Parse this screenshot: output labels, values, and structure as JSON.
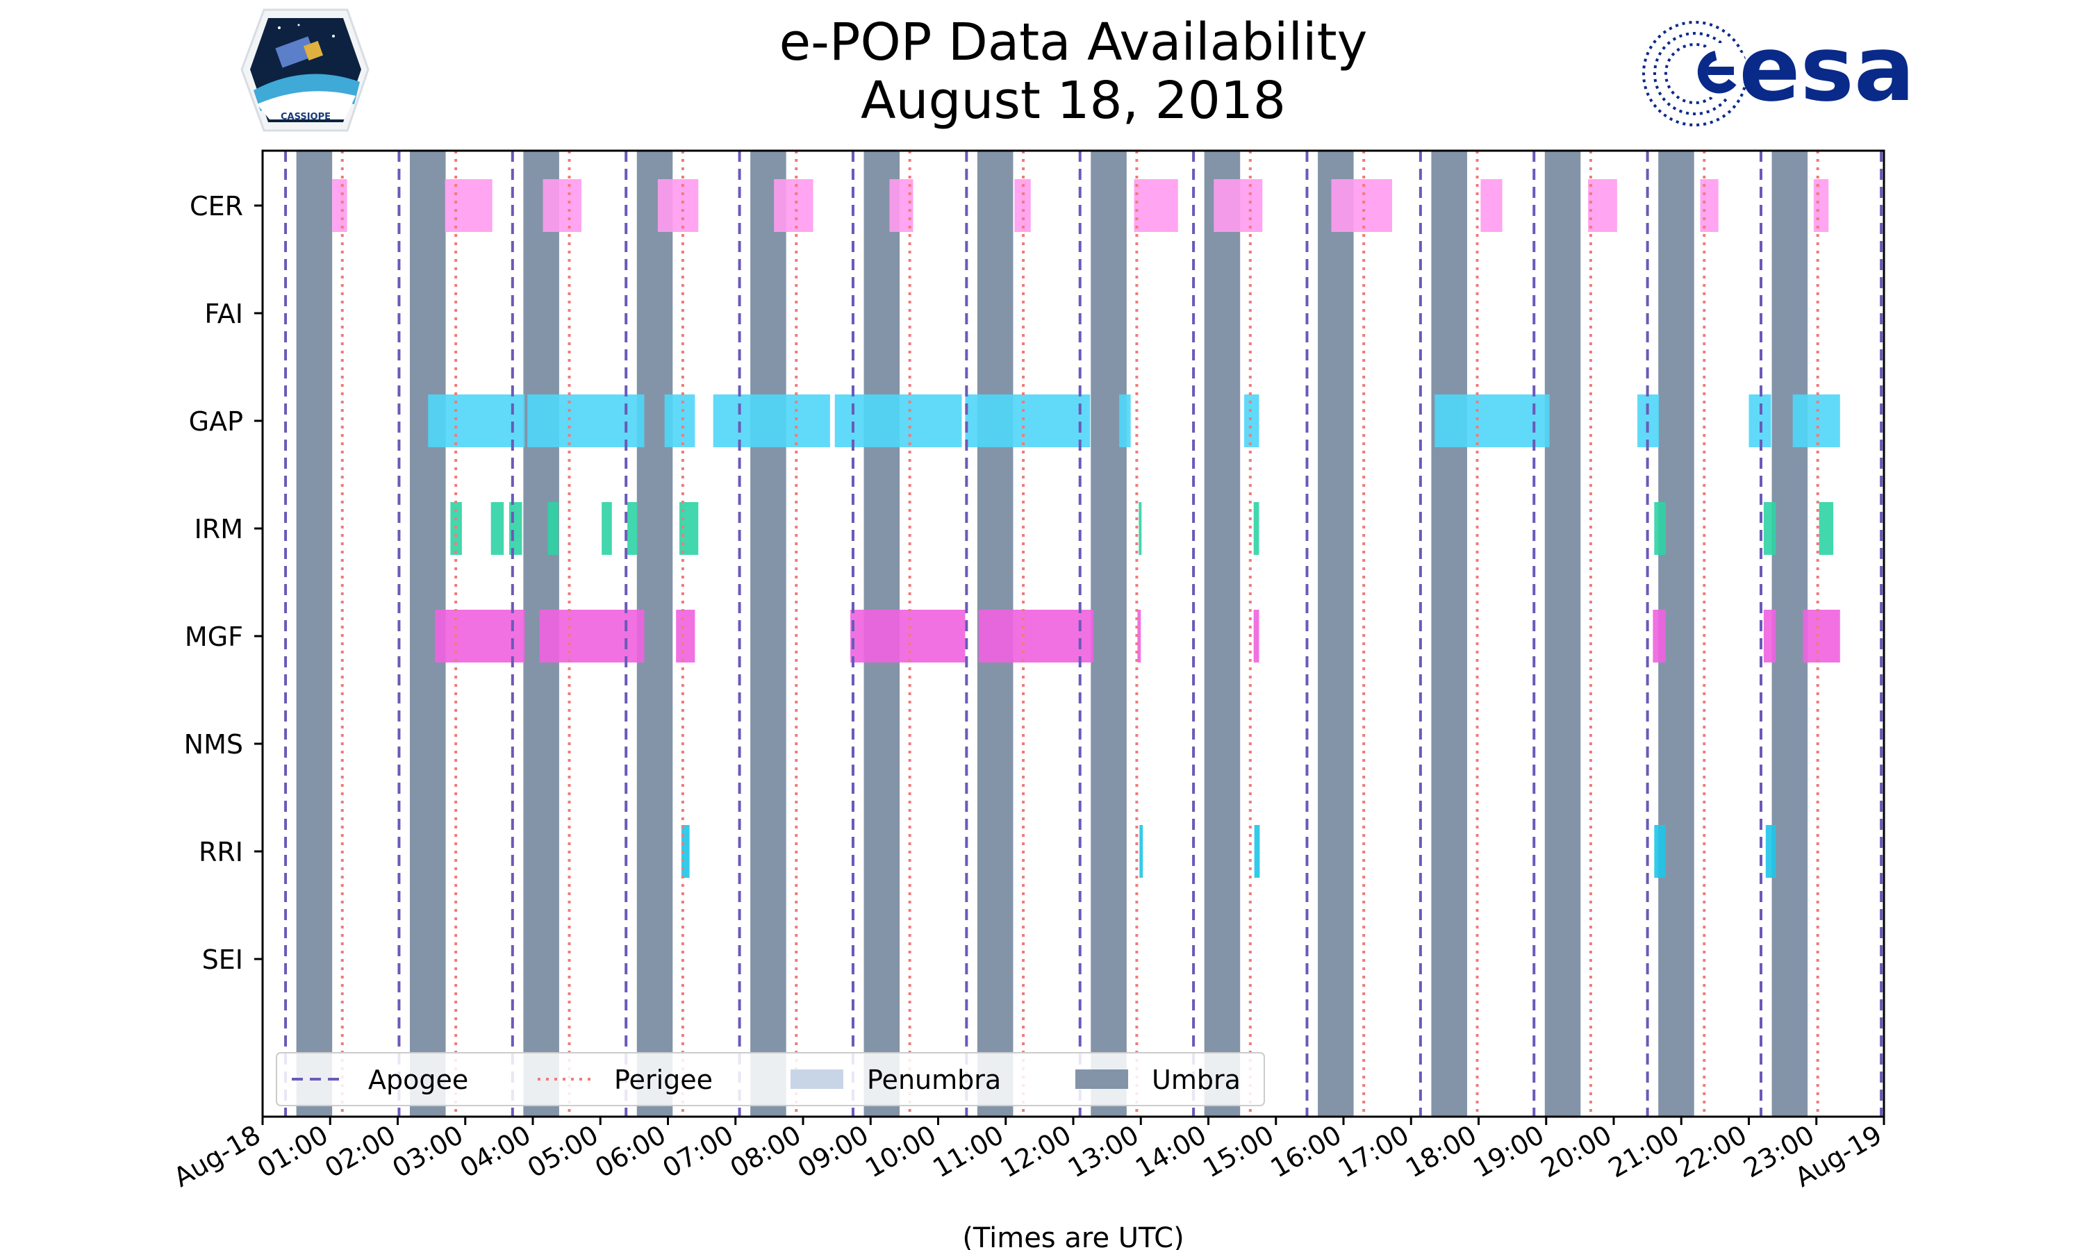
{
  "logos": {
    "left": {
      "name": "CASSIOPE mission badge",
      "text": "CASSIOPE"
    },
    "right": {
      "name": "ESA logo",
      "text": "esa",
      "color": "#0a2a8a"
    }
  },
  "chart_data": {
    "type": "timeline",
    "title": "e-POP Data Availability",
    "subtitle": "August 18, 2018",
    "xlabel": "(Times are UTC)",
    "ylabel": "",
    "x_range_hours": [
      0,
      24
    ],
    "x_tick_labels": [
      "Aug-18",
      "01:00",
      "02:00",
      "03:00",
      "04:00",
      "05:00",
      "06:00",
      "07:00",
      "08:00",
      "09:00",
      "10:00",
      "11:00",
      "12:00",
      "13:00",
      "14:00",
      "15:00",
      "16:00",
      "17:00",
      "18:00",
      "19:00",
      "20:00",
      "21:00",
      "22:00",
      "23:00",
      "Aug-19"
    ],
    "instruments": [
      "CER",
      "FAI",
      "GAP",
      "IRM",
      "MGF",
      "NMS",
      "RRI",
      "SEI"
    ],
    "colors": {
      "CER": "#ff9bf0",
      "GAP": "#4fd6f7",
      "IRM": "#2ed3a4",
      "MGF": "#f062e0",
      "RRI": "#1ec5e8",
      "apogee": "#6a5ab8",
      "perigee": "#f07b7b",
      "penumbra": "#c8d5e6",
      "umbra": "#8394a8"
    },
    "legend": {
      "placement": "bottom-left",
      "entries": [
        {
          "label": "Apogee",
          "style": "dashed"
        },
        {
          "label": "Perigee",
          "style": "dotted"
        },
        {
          "label": "Penumbra",
          "style": "patch"
        },
        {
          "label": "Umbra",
          "style": "patch"
        }
      ]
    },
    "apogee_hours": [
      0.34,
      2.02,
      3.7,
      5.38,
      7.06,
      8.74,
      10.42,
      12.1,
      13.78,
      15.46,
      17.14,
      18.82,
      20.5,
      22.18,
      23.96
    ],
    "perigee_hours": [
      1.18,
      2.86,
      4.54,
      6.22,
      7.9,
      9.58,
      11.26,
      12.94,
      14.62,
      16.3,
      17.98,
      19.66,
      21.34,
      23.02
    ],
    "umbra_hours": [
      [
        0.5,
        1.03
      ],
      [
        2.18,
        2.71
      ],
      [
        3.86,
        4.39
      ],
      [
        5.54,
        6.07
      ],
      [
        7.22,
        7.75
      ],
      [
        8.9,
        9.43
      ],
      [
        10.58,
        11.11
      ],
      [
        12.26,
        12.79
      ],
      [
        13.94,
        14.47
      ],
      [
        15.62,
        16.15
      ],
      [
        17.3,
        17.83
      ],
      [
        18.98,
        19.51
      ],
      [
        20.66,
        21.19
      ],
      [
        22.34,
        22.87
      ]
    ],
    "intervals": {
      "CER": [
        [
          1.03,
          1.25
        ],
        [
          2.7,
          3.4
        ],
        [
          4.15,
          4.72
        ],
        [
          5.85,
          6.45
        ],
        [
          7.57,
          8.15
        ],
        [
          9.28,
          9.63
        ],
        [
          11.13,
          11.37
        ],
        [
          12.9,
          13.55
        ],
        [
          14.08,
          14.8
        ],
        [
          15.82,
          16.72
        ],
        [
          18.03,
          18.35
        ],
        [
          19.62,
          20.05
        ],
        [
          21.28,
          21.55
        ],
        [
          22.96,
          23.18
        ]
      ],
      "FAI": [],
      "GAP": [
        [
          2.45,
          3.88
        ],
        [
          3.92,
          5.65
        ],
        [
          5.95,
          6.4
        ],
        [
          6.67,
          8.4
        ],
        [
          8.47,
          10.35
        ],
        [
          10.4,
          12.25
        ],
        [
          12.68,
          12.85
        ],
        [
          14.53,
          14.75
        ],
        [
          17.35,
          19.05
        ],
        [
          20.35,
          20.67
        ],
        [
          22.0,
          22.33
        ],
        [
          22.65,
          23.35
        ]
      ],
      "IRM": [
        [
          2.78,
          2.95
        ],
        [
          3.38,
          3.57
        ],
        [
          3.65,
          3.84
        ],
        [
          4.22,
          4.38
        ],
        [
          5.02,
          5.17
        ],
        [
          5.4,
          5.55
        ],
        [
          6.17,
          6.45
        ],
        [
          12.97,
          13.01
        ],
        [
          14.67,
          14.75
        ],
        [
          20.6,
          20.77
        ],
        [
          22.22,
          22.4
        ],
        [
          23.04,
          23.25
        ]
      ],
      "FAI_note": "no data",
      "MGF": [
        [
          2.55,
          3.88
        ],
        [
          4.1,
          5.65
        ],
        [
          6.12,
          6.4
        ],
        [
          8.7,
          10.4
        ],
        [
          10.6,
          12.3
        ],
        [
          12.95,
          13.0
        ],
        [
          14.67,
          14.75
        ],
        [
          20.58,
          20.77
        ],
        [
          22.22,
          22.4
        ],
        [
          22.8,
          23.35
        ]
      ],
      "NMS": [],
      "RRI": [
        [
          6.2,
          6.32
        ],
        [
          12.98,
          13.03
        ],
        [
          14.68,
          14.76
        ],
        [
          20.6,
          20.77
        ],
        [
          22.25,
          22.4
        ]
      ],
      "SEI": []
    }
  }
}
